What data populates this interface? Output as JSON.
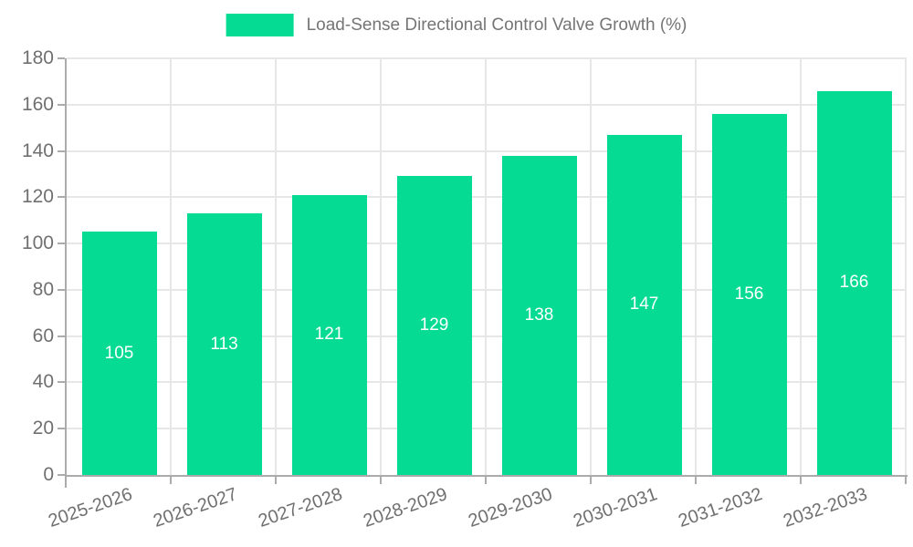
{
  "legend": {
    "label": "Load-Sense Directional Control Valve Growth (%)"
  },
  "colors": {
    "bar": "#05DB92",
    "grid": "#E7E7E7",
    "axis": "#ABABAB",
    "tick_label": "#707070",
    "legend_text": "#757575",
    "bar_label": "#FFFFFF",
    "background": "#FFFFFF"
  },
  "chart_data": {
    "type": "bar",
    "title": "Load-Sense Directional Control Valve Growth (%)",
    "categories": [
      "2025-2026",
      "2026-2027",
      "2027-2028",
      "2028-2029",
      "2029-2030",
      "2030-2031",
      "2031-2032",
      "2032-2033"
    ],
    "values": [
      105,
      113,
      121,
      129,
      138,
      147,
      156,
      166
    ],
    "xlabel": "",
    "ylabel": "",
    "ylim": [
      0,
      180
    ],
    "yticks": [
      0,
      20,
      40,
      60,
      80,
      100,
      120,
      140,
      160,
      180
    ],
    "grid": true,
    "legend_position": "top-center",
    "bar_labels_inside": true,
    "xlabel_rotation_deg": -19
  }
}
